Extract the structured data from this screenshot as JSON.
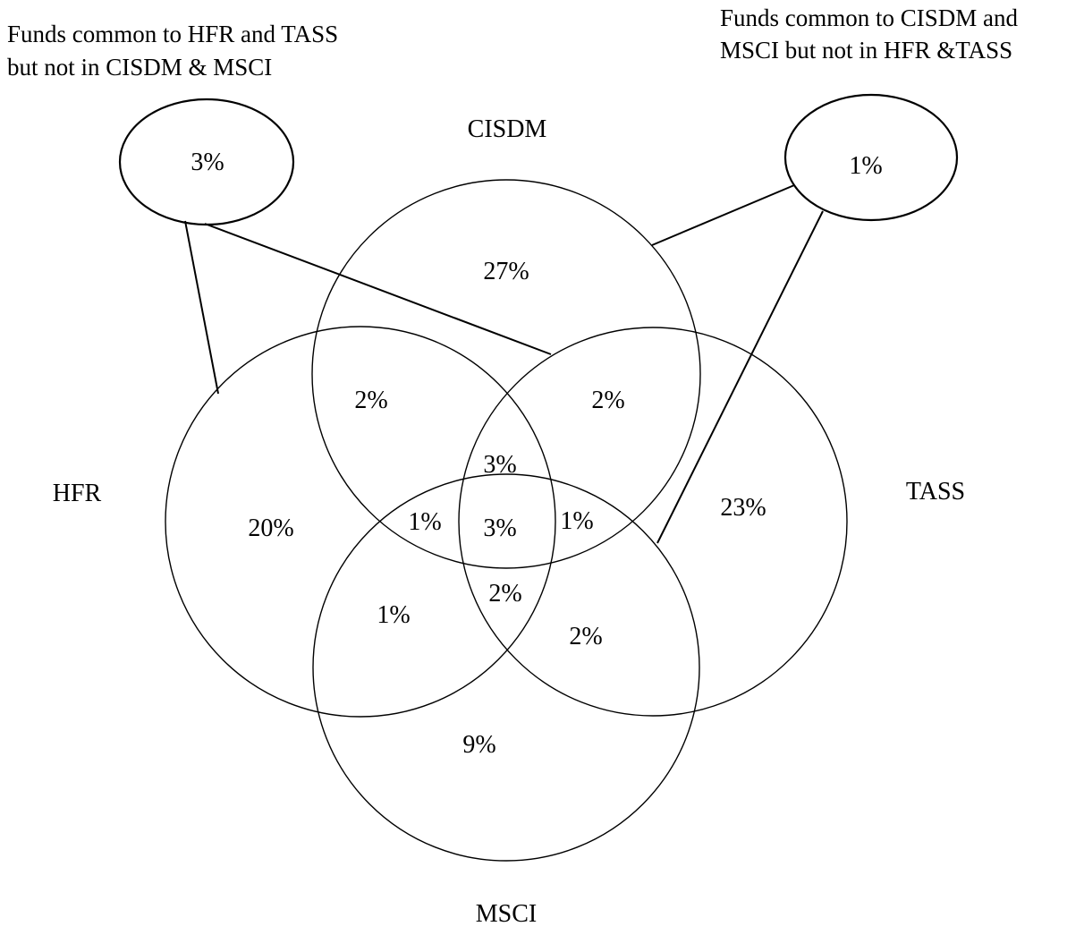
{
  "sets": {
    "top": "CISDM",
    "left": "HFR",
    "right": "TASS",
    "bottom": "MSCI"
  },
  "notes": {
    "left": [
      "Funds common to HFR and TASS",
      "but not in CISDM & MSCI"
    ],
    "right": [
      "Funds common to CISDM and",
      "MSCI but not in HFR &TASS"
    ]
  },
  "regions": {
    "cisdm_only": "27%",
    "hfr_cisdm": "2%",
    "cisdm_tass": "2%",
    "cisdm_hfr_tass": "3%",
    "hfr_only": "20%",
    "tass_only": "23%",
    "hfr_cisdm_msci": "1%",
    "all_four": "3%",
    "cisdm_tass_msci": "1%",
    "hfr_msci": "1%",
    "hfr_tass_msci": "2%",
    "tass_msci": "2%",
    "msci_only": "9%",
    "hfr_tass_only": "3%",
    "cisdm_msci_only": "1%"
  }
}
